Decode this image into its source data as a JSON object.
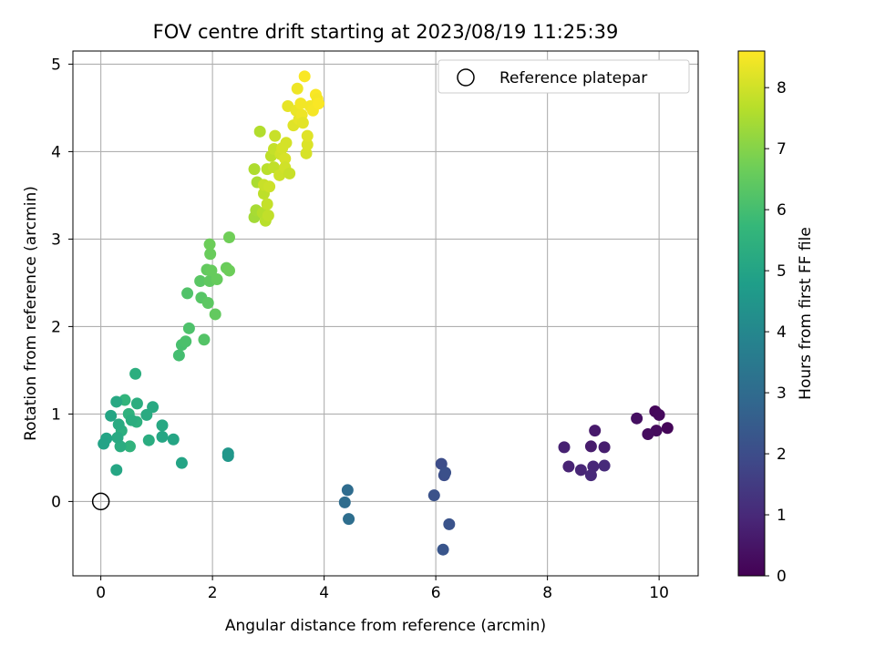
{
  "chart_data": {
    "type": "scatter",
    "title": "FOV centre drift starting at 2023/08/19 11:25:39",
    "xlabel": "Angular distance from reference (arcmin)",
    "ylabel": "Rotation from reference (arcmin)",
    "xlim": [
      -0.5,
      10.7
    ],
    "ylim": [
      -0.85,
      5.15
    ],
    "xticks": [
      0,
      2,
      4,
      6,
      8,
      10
    ],
    "yticks": [
      0,
      1,
      2,
      3,
      4,
      5
    ],
    "grid": true,
    "legend": {
      "placement": "top-right",
      "entries": [
        "Reference platepar"
      ]
    },
    "colorbar": {
      "label": "Hours from first FF file",
      "min": 0,
      "max": 8.6,
      "ticks": [
        0,
        1,
        2,
        3,
        4,
        5,
        6,
        7,
        8
      ],
      "colormap": "viridis"
    },
    "reference": {
      "x": 0,
      "y": 0,
      "label": "Reference platepar"
    },
    "points": [
      {
        "x": 10.15,
        "y": 0.84,
        "c": 0.1
      },
      {
        "x": 9.93,
        "y": 1.03,
        "c": 0.15
      },
      {
        "x": 10.0,
        "y": 0.99,
        "c": 0.2
      },
      {
        "x": 9.95,
        "y": 0.81,
        "c": 0.25
      },
      {
        "x": 9.8,
        "y": 0.77,
        "c": 0.3
      },
      {
        "x": 9.6,
        "y": 0.95,
        "c": 0.35
      },
      {
        "x": 8.85,
        "y": 0.81,
        "c": 0.6
      },
      {
        "x": 8.78,
        "y": 0.63,
        "c": 0.65
      },
      {
        "x": 9.02,
        "y": 0.62,
        "c": 0.7
      },
      {
        "x": 8.3,
        "y": 0.62,
        "c": 0.8
      },
      {
        "x": 8.38,
        "y": 0.4,
        "c": 0.85
      },
      {
        "x": 8.6,
        "y": 0.36,
        "c": 0.9
      },
      {
        "x": 8.82,
        "y": 0.4,
        "c": 0.95
      },
      {
        "x": 8.78,
        "y": 0.3,
        "c": 1.0
      },
      {
        "x": 9.02,
        "y": 0.41,
        "c": 1.05
      },
      {
        "x": 6.1,
        "y": 0.43,
        "c": 2.0
      },
      {
        "x": 6.15,
        "y": 0.3,
        "c": 2.05
      },
      {
        "x": 6.17,
        "y": 0.33,
        "c": 2.1
      },
      {
        "x": 5.97,
        "y": 0.07,
        "c": 2.15
      },
      {
        "x": 6.24,
        "y": -0.26,
        "c": 2.2
      },
      {
        "x": 6.13,
        "y": -0.55,
        "c": 2.25
      },
      {
        "x": 4.42,
        "y": 0.13,
        "c": 3.0
      },
      {
        "x": 4.37,
        "y": -0.01,
        "c": 3.05
      },
      {
        "x": 4.44,
        "y": -0.2,
        "c": 3.1
      },
      {
        "x": 2.28,
        "y": 0.55,
        "c": 4.5
      },
      {
        "x": 2.28,
        "y": 0.52,
        "c": 4.55
      },
      {
        "x": 1.45,
        "y": 0.44,
        "c": 5.0
      },
      {
        "x": 1.3,
        "y": 0.71,
        "c": 5.05
      },
      {
        "x": 1.1,
        "y": 0.74,
        "c": 5.1
      },
      {
        "x": 1.1,
        "y": 0.87,
        "c": 5.15
      },
      {
        "x": 0.93,
        "y": 1.08,
        "c": 5.2
      },
      {
        "x": 0.82,
        "y": 0.99,
        "c": 5.25
      },
      {
        "x": 0.86,
        "y": 0.7,
        "c": 5.3
      },
      {
        "x": 0.65,
        "y": 1.12,
        "c": 5.35
      },
      {
        "x": 0.62,
        "y": 1.46,
        "c": 5.4
      },
      {
        "x": 0.64,
        "y": 0.91,
        "c": 5.45
      },
      {
        "x": 0.5,
        "y": 1.0,
        "c": 5.5
      },
      {
        "x": 0.52,
        "y": 0.63,
        "c": 5.55
      },
      {
        "x": 0.43,
        "y": 1.16,
        "c": 5.6
      },
      {
        "x": 0.37,
        "y": 0.81,
        "c": 5.4
      },
      {
        "x": 0.35,
        "y": 0.63,
        "c": 5.3
      },
      {
        "x": 0.32,
        "y": 0.88,
        "c": 5.25
      },
      {
        "x": 0.3,
        "y": 0.73,
        "c": 5.2
      },
      {
        "x": 0.28,
        "y": 1.14,
        "c": 5.15
      },
      {
        "x": 0.28,
        "y": 0.36,
        "c": 5.1
      },
      {
        "x": 0.18,
        "y": 0.98,
        "c": 5.05
      },
      {
        "x": 0.1,
        "y": 0.72,
        "c": 5.0
      },
      {
        "x": 0.05,
        "y": 0.66,
        "c": 4.95
      },
      {
        "x": 0.55,
        "y": 0.93,
        "c": 5.35
      },
      {
        "x": 1.4,
        "y": 1.67,
        "c": 6.0
      },
      {
        "x": 1.45,
        "y": 1.79,
        "c": 6.05
      },
      {
        "x": 1.52,
        "y": 1.83,
        "c": 6.1
      },
      {
        "x": 1.58,
        "y": 1.98,
        "c": 6.15
      },
      {
        "x": 1.55,
        "y": 2.38,
        "c": 6.2
      },
      {
        "x": 1.85,
        "y": 1.85,
        "c": 6.25
      },
      {
        "x": 1.8,
        "y": 2.33,
        "c": 6.3
      },
      {
        "x": 1.78,
        "y": 2.52,
        "c": 6.35
      },
      {
        "x": 1.92,
        "y": 2.27,
        "c": 6.4
      },
      {
        "x": 1.95,
        "y": 2.52,
        "c": 6.45
      },
      {
        "x": 1.9,
        "y": 2.65,
        "c": 6.5
      },
      {
        "x": 1.98,
        "y": 2.64,
        "c": 6.55
      },
      {
        "x": 1.96,
        "y": 2.83,
        "c": 6.6
      },
      {
        "x": 1.95,
        "y": 2.94,
        "c": 6.65
      },
      {
        "x": 2.05,
        "y": 2.14,
        "c": 6.5
      },
      {
        "x": 2.08,
        "y": 2.54,
        "c": 6.55
      },
      {
        "x": 2.25,
        "y": 2.67,
        "c": 6.6
      },
      {
        "x": 2.3,
        "y": 2.64,
        "c": 6.65
      },
      {
        "x": 2.3,
        "y": 3.02,
        "c": 6.7
      },
      {
        "x": 2.75,
        "y": 3.25,
        "c": 7.4
      },
      {
        "x": 2.78,
        "y": 3.33,
        "c": 7.45
      },
      {
        "x": 2.8,
        "y": 3.65,
        "c": 7.5
      },
      {
        "x": 2.75,
        "y": 3.8,
        "c": 7.55
      },
      {
        "x": 2.85,
        "y": 4.23,
        "c": 7.6
      },
      {
        "x": 2.9,
        "y": 3.3,
        "c": 7.65
      },
      {
        "x": 2.95,
        "y": 3.21,
        "c": 7.7
      },
      {
        "x": 2.92,
        "y": 3.52,
        "c": 7.75
      },
      {
        "x": 3.0,
        "y": 3.27,
        "c": 7.8
      },
      {
        "x": 2.98,
        "y": 3.4,
        "c": 7.85
      },
      {
        "x": 2.92,
        "y": 3.62,
        "c": 7.9
      },
      {
        "x": 3.02,
        "y": 3.6,
        "c": 7.95
      },
      {
        "x": 2.98,
        "y": 3.8,
        "c": 7.7
      },
      {
        "x": 3.05,
        "y": 3.95,
        "c": 7.75
      },
      {
        "x": 3.1,
        "y": 3.82,
        "c": 7.8
      },
      {
        "x": 3.1,
        "y": 4.03,
        "c": 7.85
      },
      {
        "x": 3.12,
        "y": 4.18,
        "c": 7.9
      },
      {
        "x": 3.2,
        "y": 3.73,
        "c": 7.95
      },
      {
        "x": 3.22,
        "y": 3.97,
        "c": 8.0
      },
      {
        "x": 3.25,
        "y": 4.04,
        "c": 8.05
      },
      {
        "x": 3.3,
        "y": 3.92,
        "c": 8.1
      },
      {
        "x": 3.3,
        "y": 3.82,
        "c": 8.0
      },
      {
        "x": 3.32,
        "y": 4.1,
        "c": 8.05
      },
      {
        "x": 3.38,
        "y": 3.75,
        "c": 7.9
      },
      {
        "x": 3.35,
        "y": 4.52,
        "c": 8.3
      },
      {
        "x": 3.45,
        "y": 4.3,
        "c": 8.2
      },
      {
        "x": 3.5,
        "y": 4.47,
        "c": 8.35
      },
      {
        "x": 3.52,
        "y": 4.72,
        "c": 8.4
      },
      {
        "x": 3.55,
        "y": 4.37,
        "c": 8.3
      },
      {
        "x": 3.58,
        "y": 4.55,
        "c": 8.45
      },
      {
        "x": 3.6,
        "y": 4.42,
        "c": 8.4
      },
      {
        "x": 3.65,
        "y": 4.86,
        "c": 8.55
      },
      {
        "x": 3.62,
        "y": 4.33,
        "c": 8.25
      },
      {
        "x": 3.68,
        "y": 3.98,
        "c": 8.1
      },
      {
        "x": 3.7,
        "y": 4.08,
        "c": 8.15
      },
      {
        "x": 3.7,
        "y": 4.18,
        "c": 8.2
      },
      {
        "x": 3.75,
        "y": 4.52,
        "c": 8.45
      },
      {
        "x": 3.8,
        "y": 4.47,
        "c": 8.5
      },
      {
        "x": 3.85,
        "y": 4.65,
        "c": 8.55
      },
      {
        "x": 3.88,
        "y": 4.6,
        "c": 8.5
      },
      {
        "x": 3.9,
        "y": 4.55,
        "c": 8.55
      }
    ]
  }
}
